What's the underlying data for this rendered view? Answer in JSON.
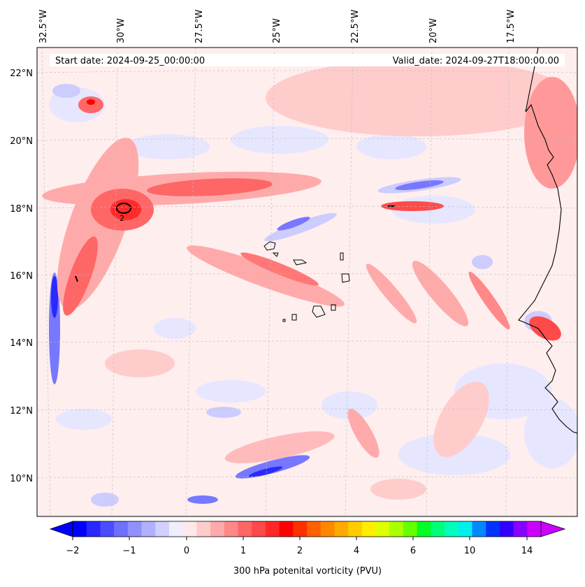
{
  "header": {
    "start_date": "Start date: 2024-09-25_00:00:00",
    "valid_date": "Valid_date: 2024-09-27T18:00:00.00"
  },
  "map": {
    "lon_labels": [
      "32.5°W",
      "30°W",
      "27.5°W",
      "25°W",
      "22.5°W",
      "20°W",
      "17.5°W"
    ],
    "lat_labels": [
      "22°N",
      "20°N",
      "18°N",
      "16°N",
      "14°N",
      "12°N",
      "10°N"
    ],
    "contour_label": "2",
    "colors": {
      "land_outline": "#000000",
      "background": "#ffeeee"
    }
  },
  "colorbar": {
    "label": "300 hPa potenital vorticity (PVU)",
    "tick_labels": [
      "−2",
      "−1",
      "0",
      "1",
      "2",
      "4",
      "6",
      "10",
      "14"
    ],
    "colors": [
      "#0000ff",
      "#2828ff",
      "#4c4cff",
      "#7070ff",
      "#9090ff",
      "#b0b0ff",
      "#d0d0ff",
      "#eeeeff",
      "#ffe8e8",
      "#ffcccc",
      "#ffaaaa",
      "#ff8888",
      "#ff6666",
      "#ff4848",
      "#ff2828",
      "#ff0000",
      "#ff3000",
      "#ff6000",
      "#ff8800",
      "#ffaa00",
      "#ffcc00",
      "#ffee00",
      "#ddff00",
      "#aaff00",
      "#66ff00",
      "#00ff22",
      "#00ff77",
      "#00ffbb",
      "#00eeee",
      "#0088ff",
      "#0033ff",
      "#3300ff",
      "#8800ff",
      "#cc00ff"
    ]
  }
}
